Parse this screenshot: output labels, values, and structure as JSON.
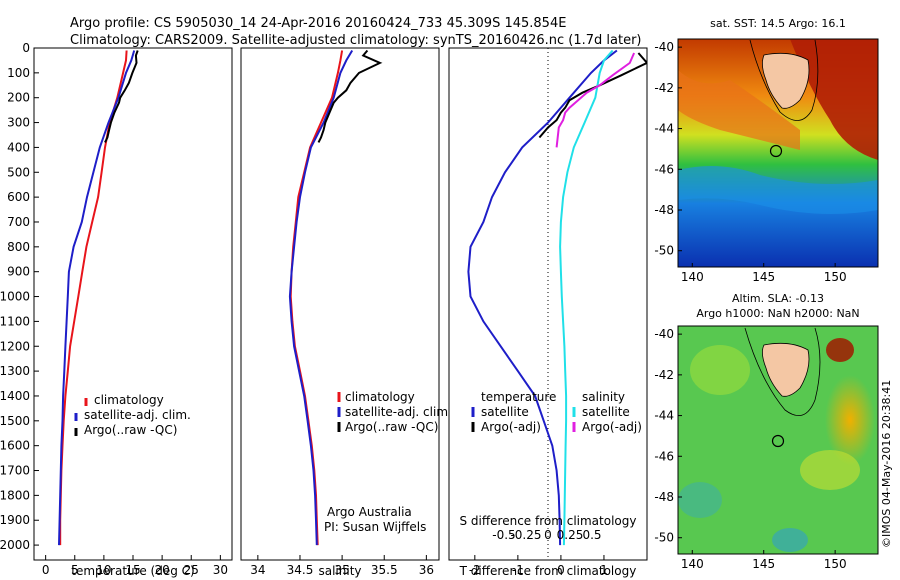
{
  "header": {
    "line1": "Argo profile: CS 5905030_14 24-Apr-2016 20160424_733 45.309S 145.854E",
    "line2": "Climatology: CARS2009. Satellite-adjusted climatology: synTS_20160426.nc (1.7d later)"
  },
  "colors": {
    "climatology": "#e8141b",
    "satellite": "#1e1ec8",
    "argo": "#000000",
    "sal_satellite": "#20e0e8",
    "sal_argo": "#e020e0"
  },
  "chart_data": [
    {
      "type": "line",
      "panel": "temperature",
      "xlabel": "temperature (deg C)",
      "ylabel": "",
      "xlim": [
        -2,
        32
      ],
      "ylim": [
        2060,
        0
      ],
      "xticks": [
        "0",
        "5",
        "10",
        "15",
        "20",
        "25",
        "30"
      ],
      "yticks": [
        "0",
        "100",
        "200",
        "300",
        "400",
        "500",
        "600",
        "700",
        "800",
        "900",
        "1000",
        "1100",
        "1200",
        "1300",
        "1400",
        "1500",
        "1600",
        "1700",
        "1800",
        "1900",
        "2000"
      ],
      "legend": [
        "climatology",
        "satellite-adj. clim.",
        "Argo(..raw -QC)"
      ],
      "series": [
        {
          "name": "climatology",
          "color": "#e8141b",
          "x": [
            13.9,
            13.8,
            13.3,
            12.3,
            11.0,
            10.2,
            9.6,
            9.0,
            8.0,
            7.0,
            6.3,
            5.6,
            4.9,
            4.2,
            3.8,
            3.4,
            3.1,
            2.9,
            2.7,
            2.6,
            2.5,
            2.5
          ],
          "y": [
            10,
            50,
            100,
            200,
            300,
            400,
            500,
            600,
            700,
            800,
            900,
            1000,
            1100,
            1200,
            1300,
            1400,
            1500,
            1600,
            1700,
            1800,
            1900,
            2000
          ]
        },
        {
          "name": "satellite-adj. clim.",
          "color": "#1e1ec8",
          "x": [
            15.2,
            14.7,
            13.8,
            12.5,
            10.8,
            9.3,
            8.2,
            7.1,
            6.2,
            4.8,
            4.0,
            3.8,
            3.6,
            3.4,
            3.2,
            3.0,
            2.9,
            2.7,
            2.6,
            2.5,
            2.4,
            2.3
          ],
          "y": [
            10,
            50,
            100,
            200,
            300,
            400,
            500,
            600,
            700,
            800,
            900,
            1000,
            1100,
            1200,
            1300,
            1400,
            1500,
            1600,
            1700,
            1800,
            1900,
            2000
          ]
        },
        {
          "name": "Argo(..raw -QC)",
          "color": "#000000",
          "x": [
            15.8,
            15.5,
            15.6,
            14.9,
            14.3,
            13.6,
            12.8,
            12.6,
            11.8,
            11.2,
            10.9,
            10.6,
            10.2
          ],
          "y": [
            10,
            30,
            60,
            100,
            140,
            170,
            200,
            220,
            260,
            300,
            330,
            360,
            380
          ]
        }
      ]
    },
    {
      "type": "line",
      "panel": "salinity",
      "xlabel": "salinity",
      "ylabel": "",
      "xlim": [
        33.8,
        36.15
      ],
      "ylim": [
        2060,
        0
      ],
      "xticks": [
        "34",
        "34.5",
        "35",
        "35.5",
        "36"
      ],
      "legend": [
        "climatology",
        "satellite-adj. clim.",
        "Argo(..raw -QC)"
      ],
      "annotations": [
        "Argo Australia",
        "PI: Susan Wijffels"
      ],
      "series": [
        {
          "name": "climatology",
          "color": "#e8141b",
          "x": [
            35.0,
            34.98,
            34.95,
            34.88,
            34.75,
            34.62,
            34.55,
            34.48,
            34.45,
            34.42,
            34.4,
            34.39,
            34.41,
            34.44,
            34.5,
            34.56,
            34.6,
            34.64,
            34.67,
            34.69,
            34.7,
            34.71
          ],
          "y": [
            10,
            50,
            100,
            200,
            300,
            400,
            500,
            600,
            700,
            800,
            900,
            1000,
            1100,
            1200,
            1300,
            1400,
            1500,
            1600,
            1700,
            1800,
            1900,
            2000
          ]
        },
        {
          "name": "satellite-adj. clim.",
          "color": "#1e1ec8",
          "x": [
            35.12,
            35.05,
            34.98,
            34.9,
            34.78,
            34.63,
            34.56,
            34.5,
            34.46,
            34.43,
            34.4,
            34.38,
            34.4,
            34.43,
            34.49,
            34.55,
            34.59,
            34.63,
            34.66,
            34.68,
            34.69,
            34.7
          ],
          "y": [
            10,
            50,
            100,
            200,
            300,
            400,
            500,
            600,
            700,
            800,
            900,
            1000,
            1100,
            1200,
            1300,
            1400,
            1500,
            1600,
            1700,
            1800,
            1900,
            2000
          ]
        },
        {
          "name": "Argo(..raw -QC)",
          "color": "#000000",
          "x": [
            35.3,
            35.25,
            35.45,
            35.2,
            35.1,
            35.05,
            34.95,
            34.9,
            34.85,
            34.8,
            34.78,
            34.75,
            34.72
          ],
          "y": [
            10,
            30,
            60,
            100,
            140,
            170,
            200,
            220,
            260,
            300,
            330,
            360,
            380
          ]
        }
      ]
    },
    {
      "type": "line",
      "panel": "difference",
      "xlabel": "T difference from climatology",
      "xlabel_top": "S difference from climatology",
      "xlim": [
        -2.6,
        2.0
      ],
      "ylim": [
        2060,
        0
      ],
      "xticks": [
        "-2",
        "-1",
        "0",
        "1"
      ],
      "xticks_S": [
        "-0.5",
        "-0.25",
        "0",
        "0.25",
        "0.5"
      ],
      "legend_temperature": [
        "temperature",
        "satellite",
        "Argo(-adj)"
      ],
      "legend_salinity": [
        "salinity",
        "satellite",
        "Argo(-adj)"
      ],
      "series": [
        {
          "name": "satellite",
          "color": "#1e1ec8",
          "x": [
            1.3,
            1.0,
            0.7,
            0.2,
            -0.3,
            -0.9,
            -1.3,
            -1.6,
            -1.8,
            -2.1,
            -2.15,
            -2.1,
            -1.8,
            -1.4,
            -1.0,
            -0.6,
            -0.4,
            -0.2,
            -0.1,
            -0.05,
            -0.03,
            -0.02
          ],
          "y": [
            10,
            50,
            100,
            200,
            300,
            400,
            500,
            600,
            700,
            800,
            900,
            1000,
            1100,
            1200,
            1300,
            1400,
            1500,
            1600,
            1700,
            1800,
            1900,
            2000
          ]
        },
        {
          "name": "Argo(-adj)",
          "color": "#000000",
          "x": [
            1.8,
            2.0,
            1.4,
            0.9,
            0.5,
            0.2,
            0.1,
            0.0,
            -0.1,
            -0.3,
            -0.5
          ],
          "y": [
            20,
            60,
            110,
            150,
            180,
            210,
            240,
            260,
            290,
            320,
            360
          ]
        },
        {
          "name": "salinity satellite",
          "color": "#20e0e8",
          "x": [
            1.2,
            1.0,
            0.9,
            0.8,
            0.55,
            0.3,
            0.15,
            0.05,
            0.0,
            -0.02,
            0.0,
            0.02,
            0.05,
            0.08,
            0.1,
            0.12,
            0.12,
            0.11,
            0.1,
            0.09,
            0.08,
            0.07
          ],
          "y": [
            10,
            50,
            100,
            200,
            300,
            400,
            500,
            600,
            700,
            800,
            900,
            1000,
            1100,
            1200,
            1300,
            1400,
            1500,
            1600,
            1700,
            1800,
            1900,
            2000
          ]
        },
        {
          "name": "salinity Argo(-adj)",
          "color": "#e020e0",
          "x": [
            1.7,
            1.6,
            1.2,
            0.9,
            0.6,
            0.4,
            0.2,
            0.1,
            0.05,
            -0.05,
            -0.1
          ],
          "y": [
            20,
            60,
            110,
            150,
            180,
            210,
            240,
            260,
            290,
            320,
            400
          ]
        }
      ]
    },
    {
      "type": "heatmap",
      "panel": "sst-map",
      "title": "sat. SST: 14.5 Argo: 16.1",
      "xticks": [
        "140",
        "145",
        "150"
      ],
      "yticks": [
        "-40",
        "-42",
        "-44",
        "-46",
        "-48",
        "-50"
      ]
    },
    {
      "type": "heatmap",
      "panel": "sla-map",
      "title_line1": "Altim. SLA: -0.13",
      "title_line2": "Argo h1000: NaN h2000: NaN",
      "xticks": [
        "140",
        "145",
        "150"
      ],
      "yticks": [
        "-40",
        "-42",
        "-44",
        "-46",
        "-48",
        "-50"
      ]
    }
  ],
  "credit": "©IMOS 04-May-2016 20:38:41"
}
